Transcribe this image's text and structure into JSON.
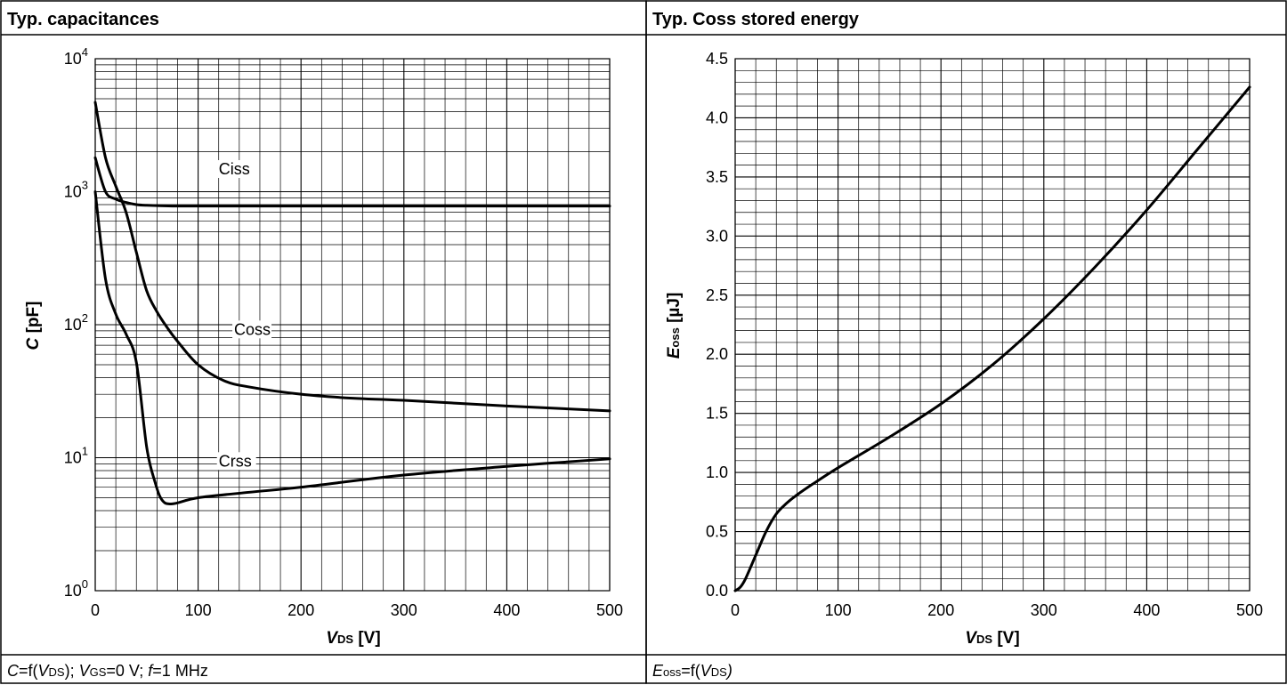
{
  "panels": {
    "left": {
      "title": "Typ. capacitances",
      "footer": {
        "p1": "C",
        "p2": "=f(",
        "p3": "V",
        "p4": "DS",
        "p5": "); ",
        "p6": "V",
        "p7": "GS",
        "p8": "=0 V; ",
        "p9": "f",
        "p10": "=1 MHz"
      }
    },
    "right": {
      "title": "Typ. Coss stored energy",
      "footer": {
        "p1": "E",
        "p2": "oss",
        "p3": "=f(",
        "p4": "V",
        "p5": "DS",
        "p6": ")"
      }
    }
  },
  "chart_data": [
    {
      "type": "line",
      "title": "Typ. capacitances",
      "xlabel": {
        "main": "V",
        "sub": "DS",
        "unit": " [V]"
      },
      "ylabel": {
        "main": "C",
        "unit": " [pF]"
      },
      "xlim": [
        0,
        500
      ],
      "ylim": [
        1,
        10000
      ],
      "yscale": "log",
      "xticks": [
        0,
        100,
        200,
        300,
        400,
        500
      ],
      "yticks": [
        {
          "base": "10",
          "exp": "0",
          "value": 1
        },
        {
          "base": "10",
          "exp": "1",
          "value": 10
        },
        {
          "base": "10",
          "exp": "2",
          "value": 100
        },
        {
          "base": "10",
          "exp": "3",
          "value": 1000
        },
        {
          "base": "10",
          "exp": "4",
          "value": 10000
        }
      ],
      "x_minor_step": 20,
      "grid": true,
      "series": [
        {
          "name": "Ciss",
          "label_at": [
            120,
            1350
          ],
          "points": [
            [
              0,
              1800
            ],
            [
              10,
              1000
            ],
            [
              20,
              880
            ],
            [
              30,
              830
            ],
            [
              40,
              800
            ],
            [
              50,
              790
            ],
            [
              75,
              780
            ],
            [
              100,
              780
            ],
            [
              200,
              780
            ],
            [
              300,
              780
            ],
            [
              400,
              780
            ],
            [
              500,
              780
            ]
          ]
        },
        {
          "name": "Coss",
          "label_at": [
            135,
            84
          ],
          "points": [
            [
              0,
              4700
            ],
            [
              10,
              1800
            ],
            [
              20,
              1100
            ],
            [
              30,
              700
            ],
            [
              40,
              350
            ],
            [
              50,
              180
            ],
            [
              60,
              125
            ],
            [
              70,
              95
            ],
            [
              80,
              75
            ],
            [
              100,
              50
            ],
            [
              125,
              38
            ],
            [
              150,
              34
            ],
            [
              200,
              30
            ],
            [
              250,
              28
            ],
            [
              300,
              27
            ],
            [
              400,
              24.5
            ],
            [
              500,
              22.5
            ]
          ]
        },
        {
          "name": "Crss",
          "label_at": [
            120,
            8.6
          ],
          "points": [
            [
              0,
              1000
            ],
            [
              10,
              220
            ],
            [
              20,
              120
            ],
            [
              30,
              85
            ],
            [
              40,
              52
            ],
            [
              50,
              12
            ],
            [
              58,
              6.6
            ],
            [
              65,
              4.8
            ],
            [
              75,
              4.5
            ],
            [
              100,
              5
            ],
            [
              150,
              5.5
            ],
            [
              200,
              6
            ],
            [
              300,
              7.4
            ],
            [
              400,
              8.6
            ],
            [
              500,
              9.8
            ]
          ]
        }
      ]
    },
    {
      "type": "line",
      "title": "Typ. Coss stored energy",
      "xlabel": {
        "main": "V",
        "sub": "DS",
        "unit": " [V]"
      },
      "ylabel": {
        "main": "E",
        "sub": "oss",
        "unit": " [µJ]"
      },
      "xlim": [
        0,
        500
      ],
      "ylim": [
        0,
        4.5
      ],
      "xticks": [
        0,
        100,
        200,
        300,
        400,
        500
      ],
      "yticks": [
        "0.0",
        "0.5",
        "1.0",
        "1.5",
        "2.0",
        "2.5",
        "3.0",
        "3.5",
        "4.0",
        "4.5"
      ],
      "x_minor_step": 20,
      "y_minor_step": 0.1,
      "grid": true,
      "series": [
        {
          "points": [
            [
              0,
              0
            ],
            [
              5,
              0.03
            ],
            [
              10,
              0.1
            ],
            [
              20,
              0.3
            ],
            [
              30,
              0.5
            ],
            [
              40,
              0.65
            ],
            [
              50,
              0.74
            ],
            [
              60,
              0.81
            ],
            [
              75,
              0.9
            ],
            [
              100,
              1.04
            ],
            [
              150,
              1.3
            ],
            [
              200,
              1.58
            ],
            [
              250,
              1.91
            ],
            [
              300,
              2.3
            ],
            [
              350,
              2.74
            ],
            [
              400,
              3.22
            ],
            [
              450,
              3.74
            ],
            [
              500,
              4.26
            ]
          ]
        }
      ]
    }
  ]
}
